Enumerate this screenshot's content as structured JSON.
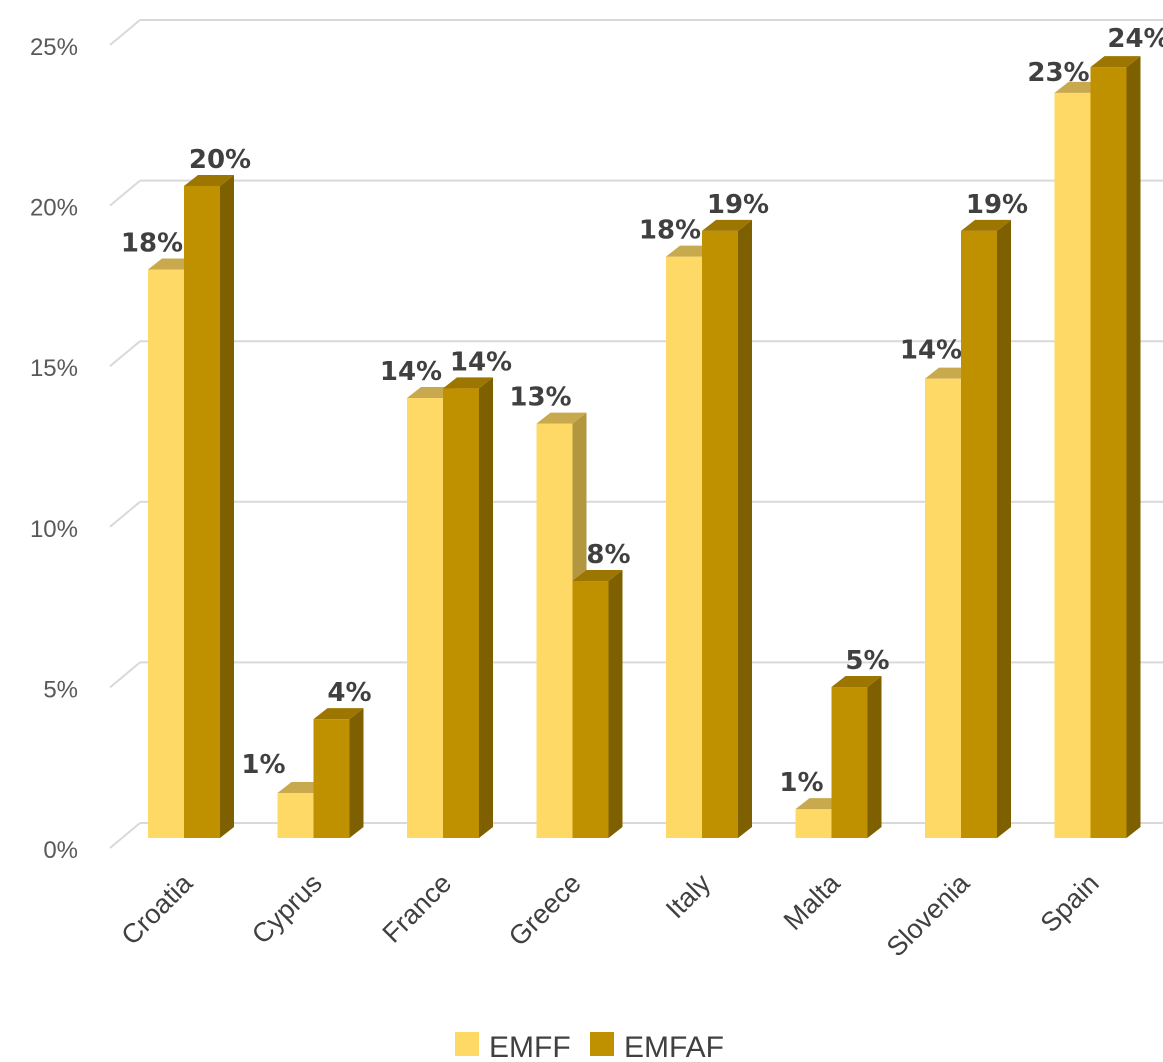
{
  "chart_data": {
    "type": "bar",
    "title": "",
    "xlabel": "",
    "ylabel": "",
    "categories": [
      "Croatia",
      "Cyprus",
      "France",
      "Greece",
      "Italy",
      "Malta",
      "Slovenia",
      "Spain"
    ],
    "series": [
      {
        "name": "EMFF",
        "values": [
          17.7,
          1.4,
          13.7,
          12.9,
          18.1,
          0.9,
          14.3,
          23.2
        ],
        "labels": [
          "18%",
          "1%",
          "14%",
          "13%",
          "18%",
          "1%",
          "14%",
          "23%"
        ],
        "color": "#FFD966",
        "top_color": "#C9A94D",
        "side_color": "#B29640"
      },
      {
        "name": "EMFAF",
        "values": [
          20.3,
          3.7,
          14.0,
          8.0,
          18.9,
          4.7,
          18.9,
          24.0
        ],
        "labels": [
          "20%",
          "4%",
          "14%",
          "8%",
          "19%",
          "5%",
          "19%",
          "24%"
        ],
        "color": "#BF9000",
        "top_color": "#9C7600",
        "side_color": "#7F6000"
      }
    ],
    "ylim": [
      0,
      25
    ],
    "yticks": [
      0,
      5,
      10,
      15,
      20,
      25
    ],
    "ytick_labels": [
      "0%",
      "5%",
      "10%",
      "15%",
      "20%",
      "25%"
    ],
    "grid": true,
    "legend_position": "bottom",
    "projection": "3d-columns"
  }
}
